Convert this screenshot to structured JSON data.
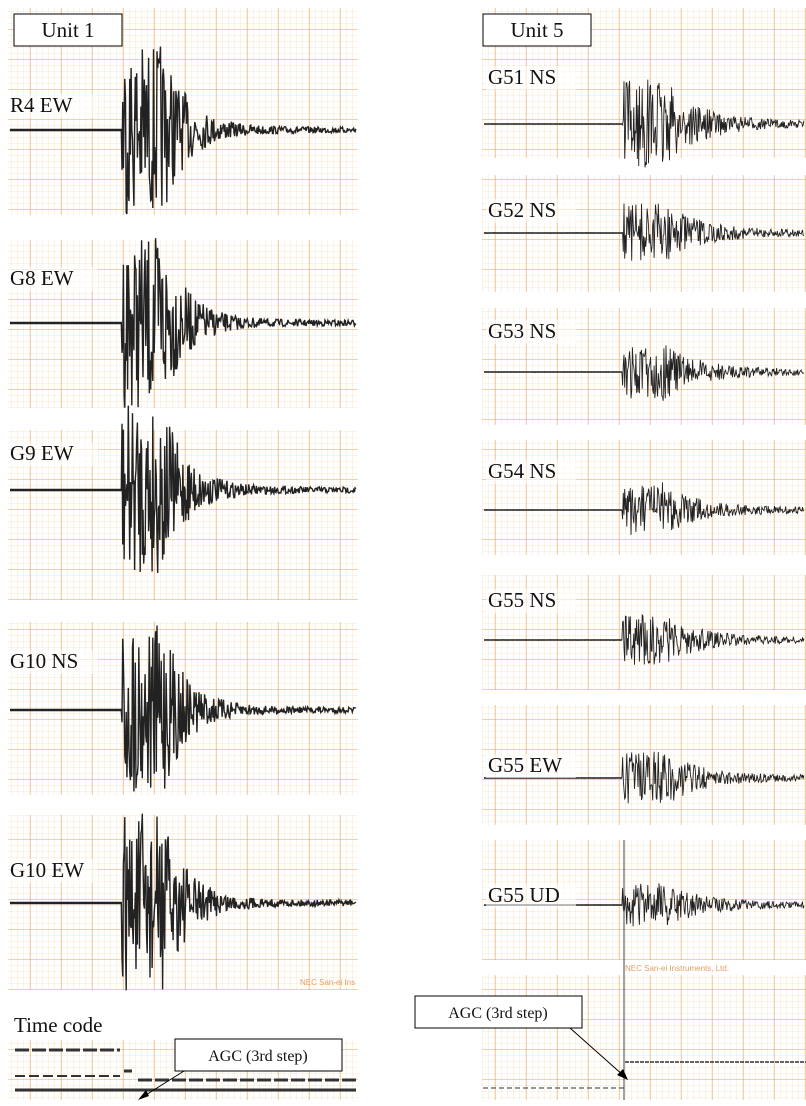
{
  "left": {
    "title": "Unit 1",
    "channels": [
      "R4 EW",
      "G8 EW",
      "G9 EW",
      "G10 NS",
      "G10 EW"
    ],
    "time_code": "Time code",
    "agc_label": "AGC (3rd step)",
    "watermark": "NEC San-ei Ins"
  },
  "right": {
    "title": "Unit 5",
    "channels": [
      "G51 NS",
      "G52 NS",
      "G53 NS",
      "G54 NS",
      "G55 NS",
      "G55 EW",
      "G55 UD"
    ],
    "agc_label": "AGC (3rd step)",
    "watermark": "NEC San-ei Instruments, Ltd."
  }
}
